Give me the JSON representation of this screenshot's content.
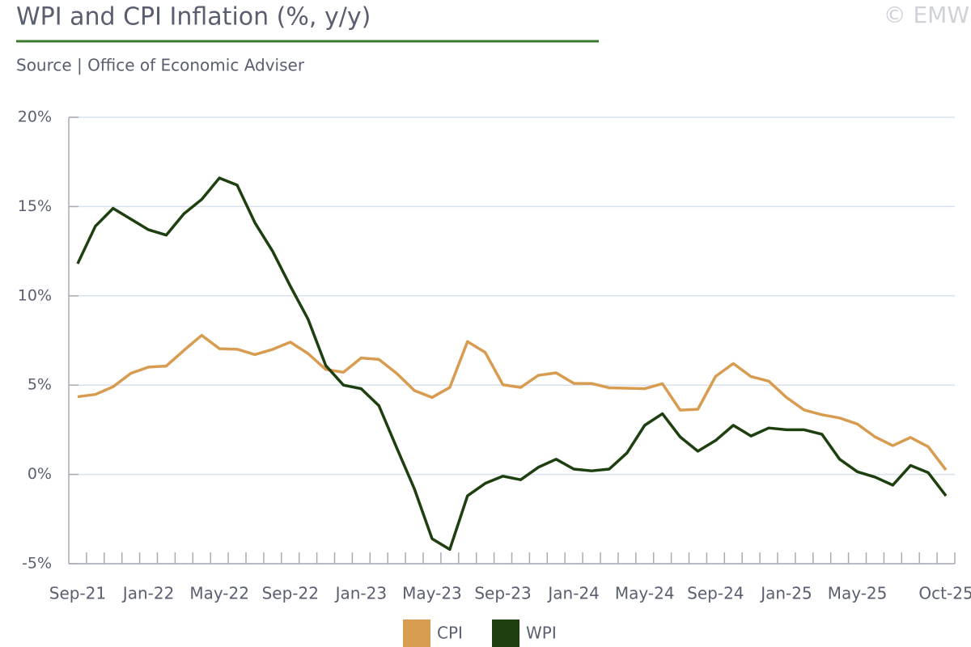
{
  "chart_data": {
    "type": "line",
    "title": "WPI and CPI Inflation (%, y/y)",
    "subtitle": "Source | Office of Economic Adviser",
    "watermark": "© EMW",
    "categories": [
      "Sep-21",
      null,
      null,
      null,
      "Jan-22",
      null,
      null,
      null,
      "May-22",
      null,
      null,
      null,
      "Sep-22",
      null,
      null,
      null,
      "Jan-23",
      null,
      null,
      null,
      "May-23",
      null,
      null,
      null,
      "Sep-23",
      null,
      null,
      null,
      "Jan-24",
      null,
      null,
      null,
      "May-24",
      null,
      null,
      null,
      "Sep-24",
      null,
      null,
      null,
      "Jan-25",
      null,
      null,
      null,
      "May-25",
      null,
      null,
      null,
      null,
      "Oct-25"
    ],
    "series": [
      {
        "name": "CPI",
        "color": "#d89c50",
        "values": [
          4.35,
          4.48,
          4.91,
          5.66,
          6.01,
          6.07,
          6.95,
          7.79,
          7.04,
          7.01,
          6.71,
          7.0,
          7.41,
          6.77,
          5.88,
          5.72,
          6.52,
          6.44,
          5.66,
          4.7,
          4.31,
          4.87,
          7.44,
          6.83,
          5.02,
          4.87,
          5.55,
          5.69,
          5.1,
          5.09,
          4.85,
          4.83,
          4.8,
          5.08,
          3.6,
          3.65,
          5.49,
          6.21,
          5.48,
          5.22,
          4.31,
          3.61,
          3.34,
          3.16,
          2.82,
          2.1,
          1.61,
          2.07,
          1.55,
          0.25
        ]
      },
      {
        "name": "WPI",
        "color": "#1e3f0f",
        "values": [
          11.8,
          13.9,
          14.9,
          14.3,
          13.7,
          13.4,
          14.6,
          15.4,
          16.6,
          16.2,
          14.1,
          12.5,
          10.55,
          8.7,
          6.1,
          5.0,
          4.8,
          3.85,
          1.5,
          -0.8,
          -3.6,
          -4.2,
          -1.2,
          -0.5,
          -0.1,
          -0.3,
          0.4,
          0.85,
          0.3,
          0.2,
          0.3,
          1.2,
          2.75,
          3.4,
          2.1,
          1.3,
          1.9,
          2.75,
          2.15,
          2.6,
          2.5,
          2.5,
          2.25,
          0.85,
          0.15,
          -0.15,
          -0.6,
          0.5,
          0.1,
          -1.2
        ]
      }
    ],
    "ylim": [
      -5,
      20
    ],
    "yticks": [
      {
        "value": -5,
        "label": "-5%"
      },
      {
        "value": 0,
        "label": "0%"
      },
      {
        "value": 5,
        "label": "5%"
      },
      {
        "value": 10,
        "label": "10%"
      },
      {
        "value": 15,
        "label": "15%"
      },
      {
        "value": 20,
        "label": "20%"
      }
    ],
    "grid": true,
    "legend": "bottom"
  }
}
